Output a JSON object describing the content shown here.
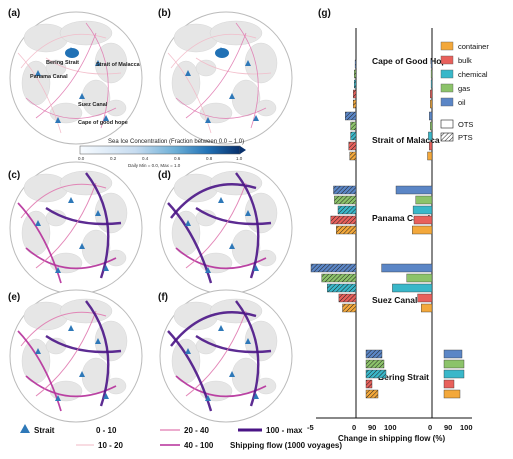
{
  "panels": {
    "a": "(a)",
    "b": "(b)",
    "c": "(c)",
    "d": "(d)",
    "e": "(e)",
    "f": "(f)",
    "g": "(g)"
  },
  "map_labels": {
    "bering": "Bering Strait",
    "malacca": "Strait of Malacca",
    "panama": "Panama Canal",
    "suez": "Suez Canal",
    "cape": "Cape of good hope"
  },
  "colorbar": {
    "title": "Sea Ice Concentration (Fraction between 0.0 – 1.0)",
    "ticks": [
      "0.0",
      "0.2",
      "0.4",
      "0.6",
      "0.8",
      "1.0"
    ],
    "note": "Daily Min = 0.0, Max = 1.0",
    "colors": [
      "#f7fbff",
      "#c6dbef",
      "#6baed6",
      "#2171b5",
      "#08306b"
    ]
  },
  "flow_legend": {
    "strait_label": "Strait",
    "bins": [
      "0 - 10",
      "10 - 20",
      "20 - 40",
      "40 - 100",
      "100 - max"
    ],
    "bin_colors": [
      "#f2b8c6",
      "#f2b8c6",
      "#e07ab0",
      "#b52f9a",
      "#4a1486"
    ],
    "title": "Shipping flow (1000 voyages)"
  },
  "chart_data": {
    "type": "bar",
    "orientation": "horizontal",
    "regions": [
      "Cape of Good Hope",
      "Strait of Malacca",
      "Panama Canal",
      "Suez Canal",
      "Bering Strait"
    ],
    "ship_types": [
      "container",
      "bulk",
      "chemical",
      "gas",
      "oil"
    ],
    "colors": {
      "container": "#f3a83b",
      "bulk": "#e8605b",
      "chemical": "#39b7c9",
      "gas": "#8cc36a",
      "oil": "#5b86c6"
    },
    "routes": [
      "OTS",
      "PTS"
    ],
    "xlabel": "Change in shipping flow (%)",
    "x_ticks_left": [
      "-5",
      "0",
      "90",
      "100"
    ],
    "x_ticks_right": [
      "0",
      "90",
      "100"
    ],
    "series": [
      {
        "name": "PTS",
        "region": "Cape of Good Hope",
        "values": {
          "container": -0.3,
          "bulk": -0.3,
          "chemical": -0.2,
          "gas": -0.2,
          "oil": -0.1
        }
      },
      {
        "name": "OTS",
        "region": "Cape of Good Hope",
        "values": {
          "container": -0.2,
          "bulk": -0.2,
          "chemical": -0.1,
          "gas": -0.1,
          "oil": -0.1
        }
      },
      {
        "name": "PTS",
        "region": "Strait of Malacca",
        "values": {
          "container": -0.7,
          "bulk": -0.8,
          "chemical": -0.6,
          "gas": -0.6,
          "oil": -1.2
        }
      },
      {
        "name": "OTS",
        "region": "Strait of Malacca",
        "values": {
          "container": -0.5,
          "bulk": -0.3,
          "chemical": -0.4,
          "gas": -0.2,
          "oil": -0.3
        }
      },
      {
        "name": "PTS",
        "region": "Panama Canal",
        "values": {
          "container": -2.2,
          "bulk": -2.8,
          "chemical": -2.0,
          "gas": -2.4,
          "oil": -2.5
        }
      },
      {
        "name": "OTS",
        "region": "Panama Canal",
        "values": {
          "container": -2.2,
          "bulk": -2.0,
          "chemical": -2.1,
          "gas": -1.8,
          "oil": -4.0
        }
      },
      {
        "name": "PTS",
        "region": "Suez Canal",
        "values": {
          "container": -1.5,
          "bulk": -1.9,
          "chemical": -3.2,
          "gas": -3.8,
          "oil": -5.0
        }
      },
      {
        "name": "OTS",
        "region": "Suez Canal",
        "values": {
          "container": -1.2,
          "bulk": -1.6,
          "chemical": -4.4,
          "gas": -2.8,
          "oil": -5.6
        }
      },
      {
        "name": "PTS",
        "region": "Bering Strait",
        "values": {
          "container": 96,
          "bulk": 93,
          "chemical": 100,
          "gas": 99,
          "oil": 98
        }
      },
      {
        "name": "OTS",
        "region": "Bering Strait",
        "values": {
          "container": 98,
          "bulk": 95,
          "chemical": 100,
          "gas": 100,
          "oil": 99
        }
      }
    ]
  }
}
